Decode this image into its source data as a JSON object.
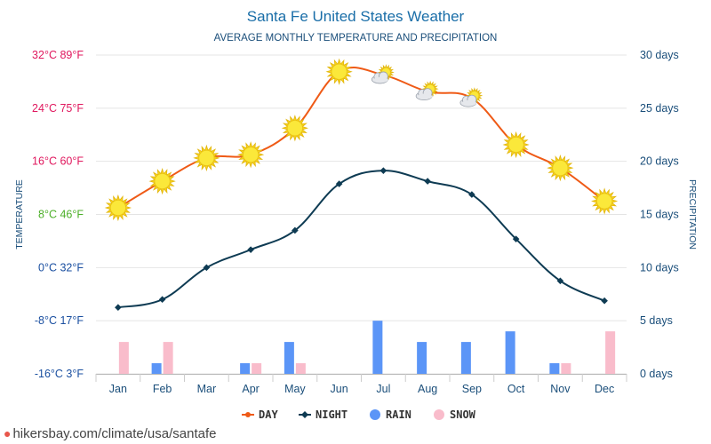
{
  "chart_data": {
    "type": "line",
    "title": "Santa Fe United States Weather",
    "subtitle": "AVERAGE MONTHLY TEMPERATURE AND PRECIPITATION",
    "categories": [
      "Jan",
      "Feb",
      "Mar",
      "Apr",
      "May",
      "Jun",
      "Jul",
      "Aug",
      "Sep",
      "Oct",
      "Nov",
      "Dec"
    ],
    "y_left_label": "TEMPERATURE",
    "y_right_label": "PRECIPITATION",
    "y_left_range": [
      -16,
      32
    ],
    "y_right_range": [
      0,
      30
    ],
    "y_left_ticks": [
      {
        "value": 32,
        "label": "32°C 89°F",
        "color": "#e0185e"
      },
      {
        "value": 24,
        "label": "24°C 75°F",
        "color": "#e0185e"
      },
      {
        "value": 16,
        "label": "16°C 60°F",
        "color": "#e0185e"
      },
      {
        "value": 8,
        "label": "8°C 46°F",
        "color": "#4caf28"
      },
      {
        "value": 0,
        "label": "0°C 32°F",
        "color": "#1a4fa0"
      },
      {
        "value": -8,
        "label": "-8°C 17°F",
        "color": "#1a4fa0"
      },
      {
        "value": -16,
        "label": "-16°C 3°F",
        "color": "#1a4fa0"
      }
    ],
    "y_right_ticks": [
      {
        "value": 30,
        "label": "30 days"
      },
      {
        "value": 25,
        "label": "25 days"
      },
      {
        "value": 20,
        "label": "20 days"
      },
      {
        "value": 15,
        "label": "15 days"
      },
      {
        "value": 10,
        "label": "10 days"
      },
      {
        "value": 5,
        "label": "5 days"
      },
      {
        "value": 0,
        "label": "0 days"
      }
    ],
    "series": [
      {
        "name": "DAY",
        "kind": "line",
        "axis": "left",
        "color": "#ef5a16",
        "values": [
          9,
          13,
          16.5,
          17,
          21,
          29.5,
          29,
          26.5,
          25.5,
          18.5,
          15,
          10
        ],
        "markers": [
          "sun",
          "sun",
          "sun",
          "sun",
          "sun",
          "sun",
          "sun-cloud",
          "sun-cloud",
          "sun-cloud",
          "sun",
          "sun",
          "sun"
        ]
      },
      {
        "name": "NIGHT",
        "kind": "line",
        "axis": "left",
        "color": "#0e3b53",
        "values": [
          -6,
          -4.8,
          0,
          2.7,
          5.6,
          12.6,
          14.6,
          13,
          11,
          4.3,
          -2,
          -5
        ]
      },
      {
        "name": "RAIN",
        "kind": "bar",
        "axis": "right",
        "color": "#5b95f7",
        "values": [
          0,
          1,
          0,
          1,
          3,
          0,
          5,
          3,
          3,
          4,
          1,
          0
        ]
      },
      {
        "name": "SNOW",
        "kind": "bar",
        "axis": "right",
        "color": "#f9bccb",
        "values": [
          3,
          3,
          0,
          1,
          1,
          0,
          0,
          0,
          0,
          0,
          1,
          4
        ]
      }
    ],
    "legend": [
      {
        "label": "DAY",
        "color": "#ef5a16",
        "kind": "line"
      },
      {
        "label": "NIGHT",
        "color": "#0e3b53",
        "kind": "line-diamond"
      },
      {
        "label": "RAIN",
        "color": "#5b95f7",
        "kind": "dot"
      },
      {
        "label": "SNOW",
        "color": "#f9bccb",
        "kind": "dot"
      }
    ],
    "legend_position": "bottom-center",
    "grid": true
  },
  "colors": {
    "title": "#1a6ea8",
    "subtitle": "#1a4e7a",
    "axis_label": "#1a4e7a",
    "right_tick": "#1a4e7a",
    "x_tick": "#1a4e7a",
    "grid": "#e4e4e4"
  },
  "footer": {
    "icon": "location-pin-icon",
    "text": "hikersbay.com/climate/usa/santafe"
  }
}
